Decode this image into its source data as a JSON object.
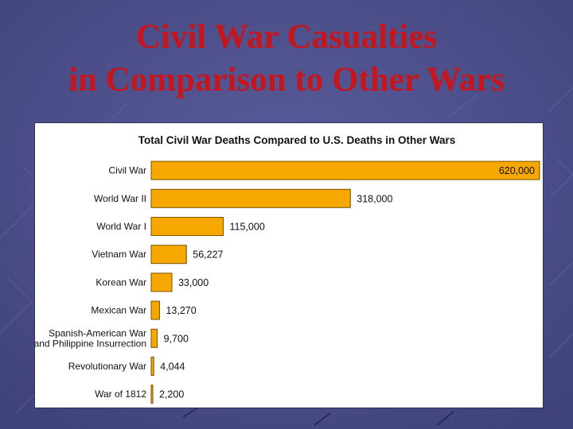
{
  "slide": {
    "title_line1": "Civil War Casualties",
    "title_line2": "in Comparison to Other Wars",
    "background_color": "#4c4f8c",
    "title_color": "#c4161c"
  },
  "chart_data": {
    "type": "bar",
    "orientation": "horizontal",
    "title": "Total Civil War Deaths Compared to U.S. Deaths in Other Wars",
    "xlabel": "",
    "ylabel": "",
    "categories": [
      [
        "Civil War"
      ],
      [
        "World War II"
      ],
      [
        "World War I"
      ],
      [
        "Vietnam War"
      ],
      [
        "Korean War"
      ],
      [
        "Mexican War"
      ],
      [
        "Spanish-American War",
        "and Philippine Insurrection"
      ],
      [
        "Revolutionary War"
      ],
      [
        "War of 1812"
      ]
    ],
    "values": [
      620000,
      318000,
      115000,
      56227,
      33000,
      13270,
      9700,
      4044,
      2200
    ],
    "value_labels": [
      "620,000",
      "318,000",
      "115,000",
      "56,227",
      "33,000",
      "13,270",
      "9,700",
      "4,044",
      "2,200"
    ],
    "xlim": [
      0,
      620000
    ],
    "grid": false,
    "legend": "none",
    "bar_color": "#f7a800",
    "bar_outline_color": "#7a5200"
  }
}
